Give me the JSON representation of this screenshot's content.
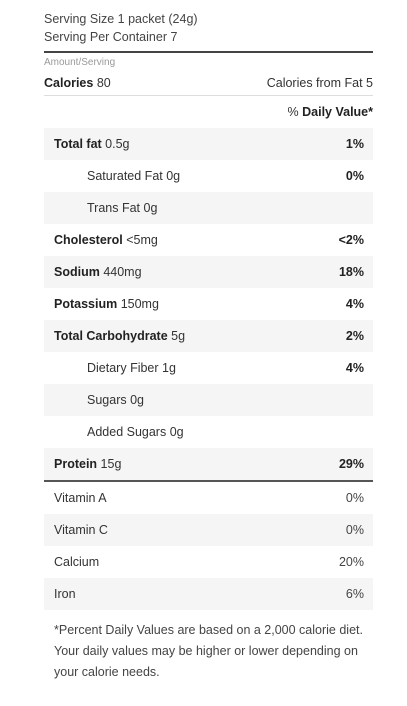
{
  "serving": {
    "size": "Serving Size 1 packet (24g)",
    "per_container": "Serving Per Container 7"
  },
  "amount_label": "Amount/Serving",
  "calories": {
    "label": "Calories",
    "value": "80",
    "from_fat": "Calories from Fat 5"
  },
  "daily_value_header": {
    "prefix": "% ",
    "label": "Daily Value*"
  },
  "nutrients": [
    {
      "name": "Total fat",
      "amount": "0.5g",
      "pct": "1%"
    },
    {
      "name": "Saturated Fat",
      "amount": "0g",
      "pct": "0%"
    },
    {
      "name": "Trans Fat",
      "amount": "0g",
      "pct": ""
    },
    {
      "name": "Cholesterol",
      "amount": "<5mg",
      "pct": "<2%"
    },
    {
      "name": "Sodium",
      "amount": "440mg",
      "pct": "18%"
    },
    {
      "name": "Potassium",
      "amount": "150mg",
      "pct": "4%"
    },
    {
      "name": "Total Carbohydrate",
      "amount": "5g",
      "pct": "2%"
    },
    {
      "name": "Dietary Fiber",
      "amount": "1g",
      "pct": "4%"
    },
    {
      "name": "Sugars",
      "amount": "0g",
      "pct": ""
    },
    {
      "name": "Added Sugars",
      "amount": "0g",
      "pct": ""
    },
    {
      "name": "Protein",
      "amount": "15g",
      "pct": "29%"
    }
  ],
  "vitamins": [
    {
      "name": "Vitamin A",
      "pct": "0%"
    },
    {
      "name": "Vitamin C",
      "pct": "0%"
    },
    {
      "name": "Calcium",
      "pct": "20%"
    },
    {
      "name": "Iron",
      "pct": "6%"
    }
  ],
  "footnote": "*Percent Daily Values are based on a 2,000 calorie diet. Your daily values may be higher or lower depending on your calorie needs."
}
